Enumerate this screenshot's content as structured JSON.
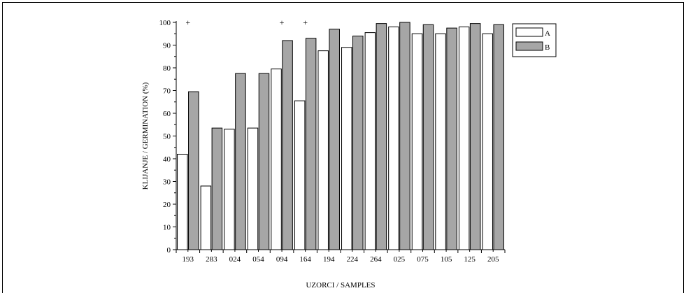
{
  "chart_data": {
    "type": "bar",
    "title": "",
    "xlabel": "UZORCI / SAMPLES",
    "ylabel": "KLIJANJE / GERMINATION (%)",
    "ylim": [
      0,
      100
    ],
    "yticks": [
      0,
      10,
      20,
      30,
      40,
      50,
      60,
      70,
      80,
      90,
      100
    ],
    "grid": false,
    "legend_placement": "top-right",
    "categories": [
      "193",
      "283",
      "024",
      "054",
      "094",
      "164",
      "194",
      "224",
      "264",
      "025",
      "075",
      "105",
      "125",
      "205"
    ],
    "series": [
      {
        "name": "A",
        "color": "#ffffff",
        "values": [
          42,
          28,
          53,
          53.5,
          79.5,
          65.5,
          87.5,
          89,
          95.5,
          98,
          95,
          95,
          98,
          95
        ]
      },
      {
        "name": "B",
        "color": "#a6a6a6",
        "values": [
          69.5,
          53.5,
          77.5,
          77.5,
          92,
          93,
          97,
          94,
          99.5,
          100,
          99,
          97.5,
          99.5,
          99
        ]
      }
    ],
    "annotations": [
      {
        "category": "193",
        "text": "+"
      },
      {
        "category": "094",
        "text": "+"
      },
      {
        "category": "164",
        "text": "+"
      }
    ]
  }
}
